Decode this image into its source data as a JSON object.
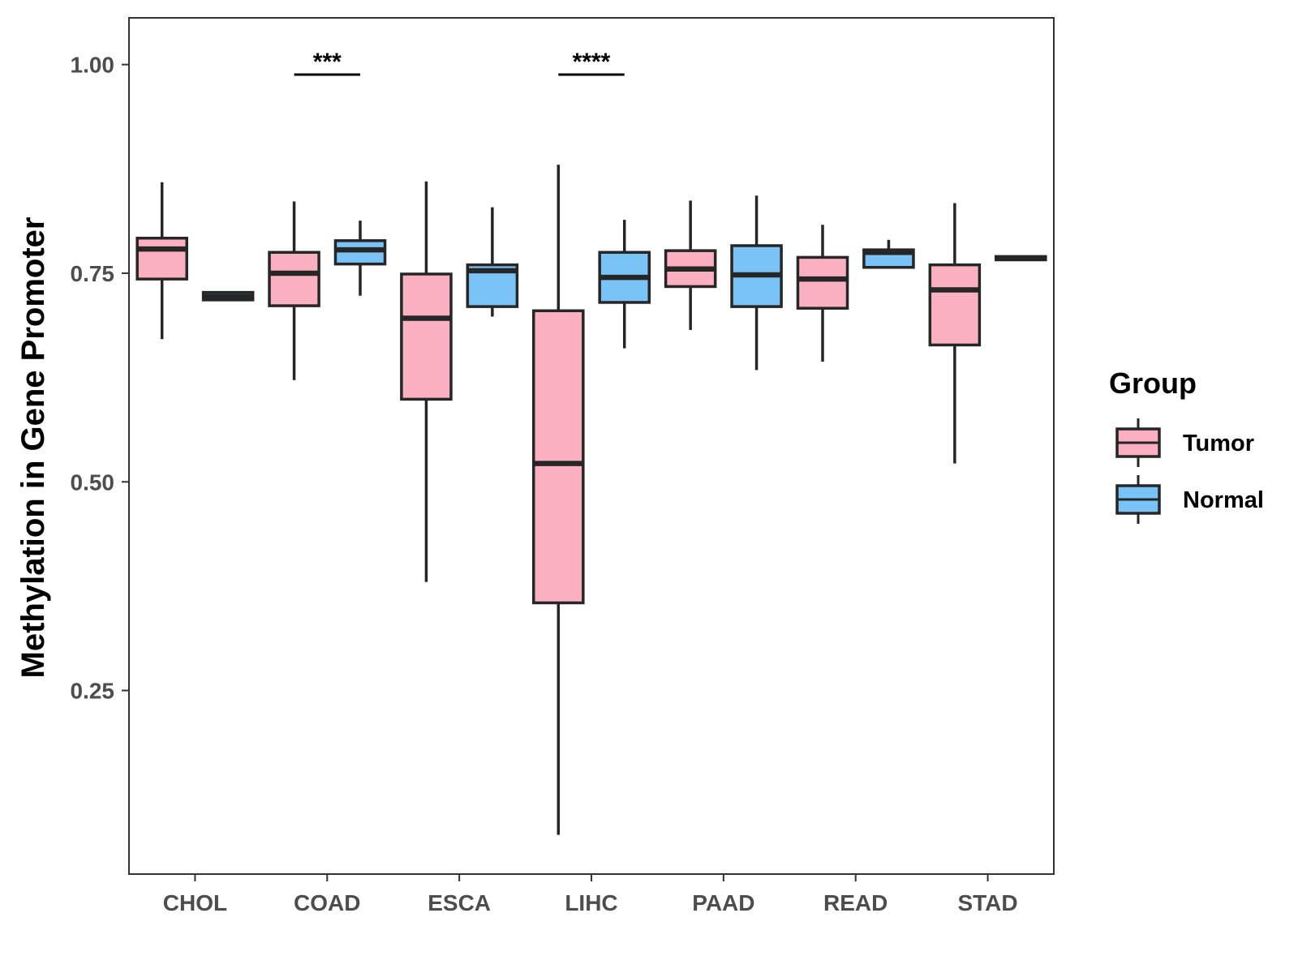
{
  "chart_data": {
    "type": "boxplot",
    "title": "",
    "xlabel": "",
    "ylabel": "Methylation in Gene Promoter",
    "ylim": [
      0.03,
      1.056
    ],
    "yticks": [
      0.25,
      0.5,
      0.75,
      1.0
    ],
    "ytick_labels": [
      "0.25",
      "0.50",
      "0.75",
      "1.00"
    ],
    "categories": [
      "CHOL",
      "COAD",
      "ESCA",
      "LIHC",
      "PAAD",
      "READ",
      "STAD"
    ],
    "legend": {
      "title": "Group",
      "position": "right",
      "entries": [
        {
          "name": "Tumor",
          "color": "#fbb0c2"
        },
        {
          "name": "Normal",
          "color": "#7ac3f7"
        }
      ]
    },
    "series": [
      {
        "name": "Tumor",
        "color": "#fbb0c2",
        "boxes": [
          {
            "category": "CHOL",
            "min": 0.671,
            "q1": 0.743,
            "median": 0.779,
            "q3": 0.792,
            "max": 0.859
          },
          {
            "category": "COAD",
            "min": 0.622,
            "q1": 0.711,
            "median": 0.75,
            "q3": 0.775,
            "max": 0.836
          },
          {
            "category": "ESCA",
            "min": 0.38,
            "q1": 0.599,
            "median": 0.696,
            "q3": 0.749,
            "max": 0.86
          },
          {
            "category": "LIHC",
            "min": 0.077,
            "q1": 0.355,
            "median": 0.522,
            "q3": 0.705,
            "max": 0.88
          },
          {
            "category": "PAAD",
            "min": 0.682,
            "q1": 0.734,
            "median": 0.755,
            "q3": 0.777,
            "max": 0.837
          },
          {
            "category": "READ",
            "min": 0.644,
            "q1": 0.708,
            "median": 0.743,
            "q3": 0.769,
            "max": 0.808
          },
          {
            "category": "STAD",
            "min": 0.522,
            "q1": 0.664,
            "median": 0.73,
            "q3": 0.76,
            "max": 0.834
          }
        ]
      },
      {
        "name": "Normal",
        "color": "#7ac3f7",
        "boxes": [
          {
            "category": "CHOL",
            "min": 0.718,
            "q1": 0.718,
            "median": 0.722,
            "q3": 0.727,
            "max": 0.727
          },
          {
            "category": "COAD",
            "min": 0.723,
            "q1": 0.761,
            "median": 0.778,
            "q3": 0.789,
            "max": 0.813
          },
          {
            "category": "ESCA",
            "min": 0.698,
            "q1": 0.71,
            "median": 0.753,
            "q3": 0.76,
            "max": 0.829
          },
          {
            "category": "LIHC",
            "min": 0.66,
            "q1": 0.715,
            "median": 0.745,
            "q3": 0.775,
            "max": 0.814
          },
          {
            "category": "PAAD",
            "min": 0.634,
            "q1": 0.71,
            "median": 0.748,
            "q3": 0.783,
            "max": 0.843
          },
          {
            "category": "READ",
            "min": 0.757,
            "q1": 0.757,
            "median": 0.775,
            "q3": 0.778,
            "max": 0.79
          },
          {
            "category": "STAD",
            "min": 0.766,
            "q1": 0.766,
            "median": 0.768,
            "q3": 0.77,
            "max": 0.77
          }
        ]
      }
    ],
    "annotations": [
      {
        "category": "COAD",
        "text": "***",
        "y": 0.988
      },
      {
        "category": "LIHC",
        "text": "****",
        "y": 0.988
      }
    ]
  }
}
